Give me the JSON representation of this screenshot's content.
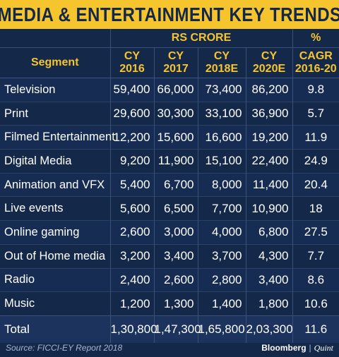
{
  "title": "MEDIA & ENTERTAINMENT KEY TRENDS",
  "chart_data": {
    "type": "table",
    "unit_label": "RS CRORE",
    "pct_label": "%",
    "columns": [
      "Segment",
      "CY 2016",
      "CY 2017",
      "CY 2018E",
      "CY 2020E",
      "CAGR 2016-20"
    ],
    "rows": [
      [
        "Television",
        "59,400",
        "66,000",
        "73,400",
        "86,200",
        "9.8"
      ],
      [
        "Print",
        "29,600",
        "30,300",
        "33,100",
        "36,900",
        "5.7"
      ],
      [
        "Filmed Entertainment",
        "12,200",
        "15,600",
        "16,600",
        "19,200",
        "11.9"
      ],
      [
        "Digital Media",
        "9,200",
        "11,900",
        "15,100",
        "22,400",
        "24.9"
      ],
      [
        "Animation and VFX",
        "5,400",
        "6,700",
        "8,000",
        "11,400",
        "20.4"
      ],
      [
        "Live events",
        "5,600",
        "6,500",
        "7,700",
        "10,900",
        "18"
      ],
      [
        "Online gaming",
        "2,600",
        "3,000",
        "4,000",
        "6,800",
        "27.5"
      ],
      [
        "Out of Home media",
        "3,200",
        "3,400",
        "3,700",
        "4,300",
        "7.7"
      ],
      [
        "Radio",
        "2,400",
        "2,600",
        "2,800",
        "3,400",
        "8.6"
      ],
      [
        "Music",
        "1,200",
        "1,300",
        "1,400",
        "1,800",
        "10.6"
      ]
    ],
    "total": [
      "Total",
      "1,30,800",
      "1,47,300",
      "1,65,800",
      "2,03,300",
      "11.6"
    ]
  },
  "source": "Source: FICCI-EY Report 2018",
  "brand": {
    "name": "Bloomberg",
    "sep": "|",
    "partner": "Quint"
  },
  "colors": {
    "background": "#14284a",
    "accent": "#f6c42c",
    "text": "#ffffff"
  }
}
